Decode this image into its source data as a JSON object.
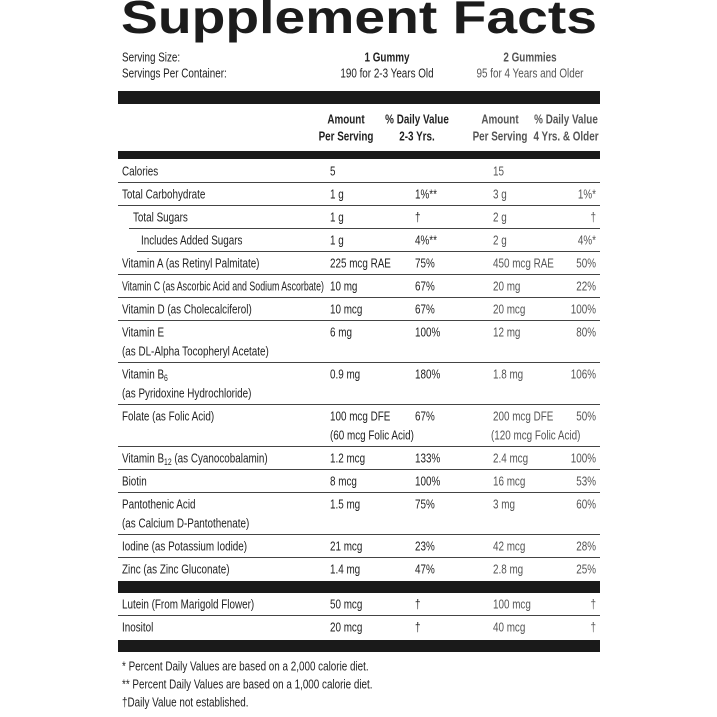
{
  "title": "Supplement Facts",
  "serving": {
    "labels": [
      "Serving Size:",
      "Servings Per Container:"
    ],
    "column_1": [
      "1 Gummy",
      "190 for 2-3 Years Old"
    ],
    "column_2": [
      "2 Gummies",
      "95 for 4 Years and Older"
    ]
  },
  "header": [
    [
      "Amount",
      "Per Serving"
    ],
    [
      "% Daily Value",
      "2-3 Yrs."
    ],
    [
      "Amount",
      "Per Serving"
    ],
    [
      "% Daily Value",
      "4 Yrs. & Older"
    ]
  ],
  "nutrients": [
    {
      "name": "Calories",
      "amount_1": "5",
      "amount_2": "15"
    },
    {
      "name": "Total Carbohydrate",
      "amount_1": "1 g",
      "dv_1": "1%**",
      "amount_2": "3 g",
      "dv_2": "1%*"
    },
    {
      "name": "Total Sugars",
      "amount_1": "1 g",
      "dv_1": "†",
      "amount_2": "2 g",
      "dv_2": "†"
    },
    {
      "name": "Includes Added Sugars",
      "amount_1": "1 g",
      "dv_1": "4%**",
      "amount_2": "2 g",
      "dv_2": "4%*"
    },
    {
      "name": "Vitamin A (as Retinyl Palmitate)",
      "amount_1": "225 mcg RAE",
      "dv_1": "75%",
      "amount_2": "450 mcg RAE",
      "dv_2": "50%"
    },
    {
      "name": "Vitamin C (as Ascorbic Acid and Sodium Ascorbate)",
      "amount_1": "10 mg",
      "dv_1": "67%",
      "amount_2": "20 mg",
      "dv_2": "22%"
    },
    {
      "name": "Vitamin D (as Cholecalciferol)",
      "amount_1": "10 mcg",
      "dv_1": "67%",
      "amount_2": "20 mcg",
      "dv_2": "100%"
    },
    {
      "name": "Vitamin E",
      "note": "(as DL-Alpha Tocopheryl Acetate)",
      "amount_1": "6 mg",
      "dv_1": "100%",
      "amount_2": "12 mg",
      "dv_2": "80%"
    },
    {
      "name": "Vitamin B",
      "sub": "6",
      "note": "(as Pyridoxine Hydrochloride)",
      "amount_1": "0.9 mg",
      "dv_1": "180%",
      "amount_2": "1.8 mg",
      "dv_2": "106%"
    },
    {
      "name": "Folate (as Folic Acid)",
      "amount_1": "100 mcg DFE",
      "amount_1_note": "(60 mcg Folic Acid)",
      "dv_1": "67%",
      "amount_2": "200 mcg DFE",
      "amount_2_note": "(120 mcg Folic Acid)",
      "dv_2": "50%"
    },
    {
      "name": "Vitamin B",
      "sub": "12",
      "suffix": " (as Cyanocobalamin)",
      "amount_1": "1.2 mcg",
      "dv_1": "133%",
      "amount_2": "2.4 mcg",
      "dv_2": "100%"
    },
    {
      "name": "Biotin",
      "amount_1": "8 mcg",
      "dv_1": "100%",
      "amount_2": "16 mcg",
      "dv_2": "53%"
    },
    {
      "name": "Pantothenic Acid",
      "note": "(as Calcium D-Pantothenate)",
      "amount_1": "1.5 mg",
      "dv_1": "75%",
      "amount_2": "3 mg",
      "dv_2": "60%"
    },
    {
      "name": "Iodine (as Potassium Iodide)",
      "amount_1": "21 mcg",
      "dv_1": "23%",
      "amount_2": "42 mcg",
      "dv_2": "28%"
    },
    {
      "name": "Zinc (as Zinc Gluconate)",
      "amount_1": "1.4 mg",
      "dv_1": "47%",
      "amount_2": "2.8 mg",
      "dv_2": "25%"
    }
  ],
  "other_ingredients": [
    {
      "name": "Lutein (From Marigold Flower)",
      "amount_1": "50 mcg",
      "dv_1": "†",
      "amount_2": "100 mcg",
      "dv_2": "†"
    },
    {
      "name": "Inositol",
      "amount_1": "20 mcg",
      "dv_1": "†",
      "amount_2": "40 mcg",
      "dv_2": "†"
    }
  ],
  "footnotes": [
    "* Percent Daily Values are based on a 2,000 calorie diet.",
    "** Percent Daily Values are based on a 1,000 calorie diet.",
    "†Daily Value not established."
  ]
}
